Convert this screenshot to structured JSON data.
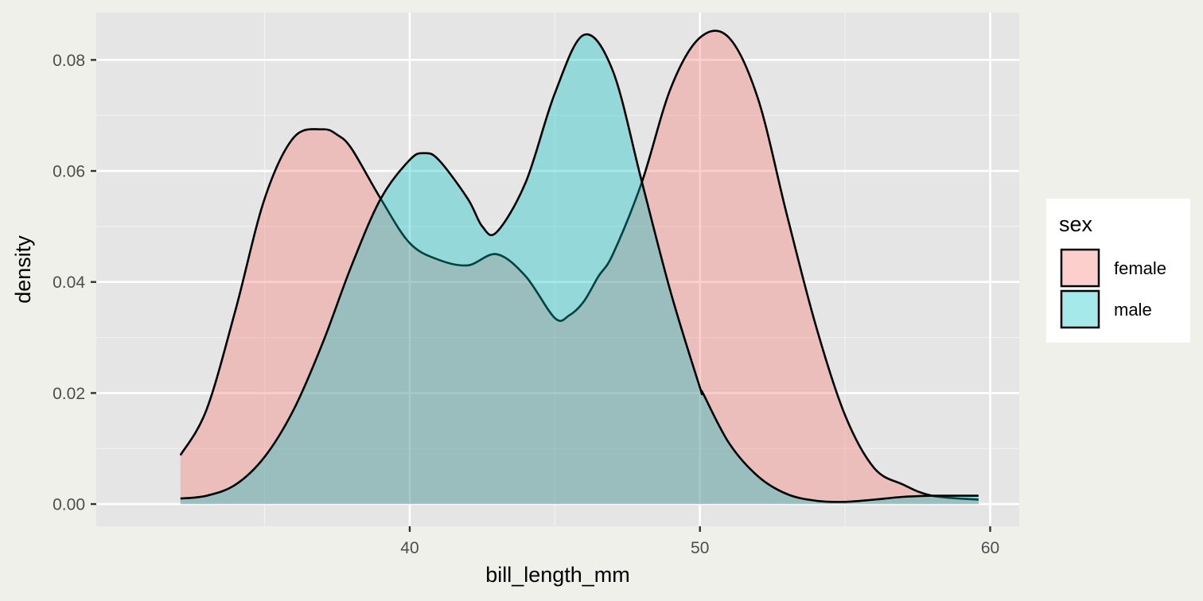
{
  "chart_data": {
    "type": "area",
    "subtype": "density",
    "xlabel": "bill_length_mm",
    "ylabel": "density",
    "xlim": [
      29.2,
      61.0
    ],
    "ylim": [
      -0.004,
      0.0885
    ],
    "x_ticks": [
      40,
      50,
      60
    ],
    "x_tick_labels": [
      "40",
      "50",
      "60"
    ],
    "y_ticks": [
      0,
      0.02,
      0.04,
      0.06,
      0.08
    ],
    "y_tick_labels": [
      "0.00",
      "0.02",
      "0.04",
      "0.06",
      "0.08"
    ],
    "grid": true,
    "legend": {
      "title": "sex",
      "position": "right"
    },
    "series": [
      {
        "name": "female",
        "fill": "#f8766d",
        "x": [
          32.1,
          33.0,
          34.0,
          35.0,
          36.0,
          37.0,
          37.5,
          38.0,
          39.0,
          40.0,
          41.0,
          42.0,
          43.0,
          44.0,
          45.0,
          45.5,
          46.0,
          46.5,
          47.0,
          48.0,
          49.0,
          50.0,
          51.0,
          52.0,
          53.0,
          54.0,
          55.0,
          56.0,
          57.0,
          58.0,
          59.6
        ],
        "y": [
          0.0088,
          0.017,
          0.035,
          0.055,
          0.066,
          0.0675,
          0.0665,
          0.064,
          0.055,
          0.047,
          0.044,
          0.043,
          0.045,
          0.041,
          0.0335,
          0.034,
          0.0365,
          0.041,
          0.045,
          0.058,
          0.075,
          0.084,
          0.084,
          0.073,
          0.052,
          0.032,
          0.016,
          0.0065,
          0.0035,
          0.0015,
          0.0008
        ]
      },
      {
        "name": "male",
        "fill": "#00bfc4",
        "x": [
          32.1,
          33.0,
          34.0,
          35.0,
          36.0,
          37.0,
          38.0,
          39.0,
          40.0,
          40.5,
          41.0,
          42.0,
          42.5,
          43.0,
          44.0,
          45.0,
          46.0,
          47.0,
          48.0,
          49.0,
          50.0,
          50.1,
          51.0,
          52.0,
          53.0,
          54.0,
          55.0,
          56.0,
          57.0,
          58.0,
          59.6
        ],
        "y": [
          0.001,
          0.0015,
          0.0035,
          0.0085,
          0.017,
          0.029,
          0.043,
          0.055,
          0.062,
          0.0632,
          0.062,
          0.055,
          0.05,
          0.049,
          0.058,
          0.074,
          0.0845,
          0.078,
          0.058,
          0.038,
          0.021,
          0.02,
          0.011,
          0.005,
          0.0018,
          0.0006,
          0.0004,
          0.0008,
          0.0013,
          0.0015,
          0.0015
        ]
      }
    ]
  }
}
